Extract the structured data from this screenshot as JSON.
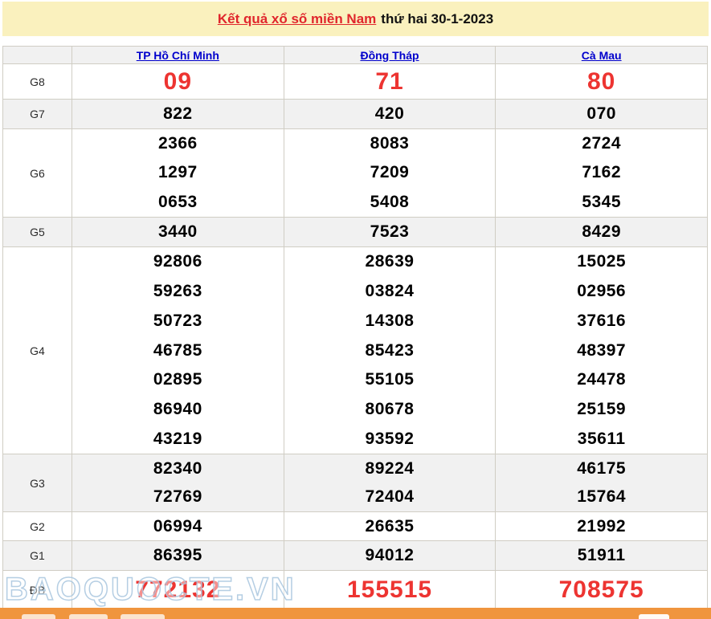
{
  "title": {
    "link_text": "Kết quả xổ số miền Nam",
    "date_text": "thứ hai 30-1-2023"
  },
  "table": {
    "columns": [
      "TP Hồ Chí Minh",
      "Đồng Tháp",
      "Cà Mau"
    ],
    "rows": [
      {
        "label": "G8",
        "emphasis": true,
        "cells": [
          [
            "09"
          ],
          [
            "71"
          ],
          [
            "80"
          ]
        ]
      },
      {
        "label": "G7",
        "cells": [
          [
            "822"
          ],
          [
            "420"
          ],
          [
            "070"
          ]
        ]
      },
      {
        "label": "G6",
        "cells": [
          [
            "2366",
            "1297",
            "0653"
          ],
          [
            "8083",
            "7209",
            "5408"
          ],
          [
            "2724",
            "7162",
            "5345"
          ]
        ]
      },
      {
        "label": "G5",
        "cells": [
          [
            "3440"
          ],
          [
            "7523"
          ],
          [
            "8429"
          ]
        ]
      },
      {
        "label": "G4",
        "cells": [
          [
            "92806",
            "59263",
            "50723",
            "46785",
            "02895",
            "86940",
            "43219"
          ],
          [
            "28639",
            "03824",
            "14308",
            "85423",
            "55105",
            "80678",
            "93592"
          ],
          [
            "15025",
            "02956",
            "37616",
            "48397",
            "24478",
            "25159",
            "35611"
          ]
        ]
      },
      {
        "label": "G3",
        "cells": [
          [
            "82340",
            "72769"
          ],
          [
            "89224",
            "72404"
          ],
          [
            "46175",
            "15764"
          ]
        ]
      },
      {
        "label": "G2",
        "cells": [
          [
            "06994"
          ],
          [
            "26635"
          ],
          [
            "21992"
          ]
        ]
      },
      {
        "label": "G1",
        "cells": [
          [
            "86395"
          ],
          [
            "94012"
          ],
          [
            "51911"
          ]
        ]
      },
      {
        "label": "ĐB",
        "emphasis": true,
        "cells": [
          [
            "772132"
          ],
          [
            "155515"
          ],
          [
            "708575"
          ]
        ]
      }
    ]
  },
  "watermark": "BAOQUOCTE.VN",
  "colors": {
    "banner_yellow": "#faf1be",
    "accent_red": "#ed3431",
    "link_blue": "#0000cc",
    "row_shade_gray": "#f1f1f1",
    "footer_orange": "#f0953e"
  }
}
